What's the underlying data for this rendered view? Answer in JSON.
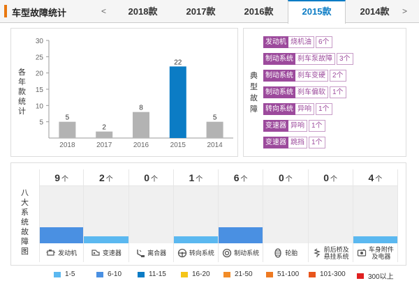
{
  "header": {
    "title": "车型故障统计",
    "prev_arrow": "<",
    "next_arrow": ">",
    "tabs": [
      {
        "label": "2018款",
        "active": false
      },
      {
        "label": "2017款",
        "active": false
      },
      {
        "label": "2016款",
        "active": false
      },
      {
        "label": "2015款",
        "active": true
      },
      {
        "label": "2014款",
        "active": false
      }
    ]
  },
  "chart_panel": {
    "ylabel_chars": [
      "各",
      "年",
      "款",
      "统",
      "计"
    ]
  },
  "chart_data": {
    "type": "bar",
    "categories": [
      "2018",
      "2017",
      "2016",
      "2015",
      "2014"
    ],
    "values": [
      5,
      2,
      8,
      22,
      5
    ],
    "highlight_index": 3,
    "highlight_color": "#0b7cc5",
    "bar_color": "#b3b3b3",
    "ylim": [
      0,
      30
    ],
    "yticks": [
      5,
      10,
      15,
      20,
      25,
      30
    ],
    "grid": false
  },
  "faults_panel": {
    "label_chars": [
      "典",
      "型",
      "故",
      "障"
    ],
    "items": [
      {
        "system": "发动机",
        "fault": "烧机油",
        "count": "6个"
      },
      {
        "system": "制动系统",
        "fault": "刹车泵故障",
        "count": "3个"
      },
      {
        "system": "制动系统",
        "fault": "刹车变硬",
        "count": "2个"
      },
      {
        "system": "制动系统",
        "fault": "刹车偏软",
        "count": "1个"
      },
      {
        "system": "转向系统",
        "fault": "异响",
        "count": "1个"
      },
      {
        "system": "变速器",
        "fault": "异响",
        "count": "1个"
      },
      {
        "system": "变速器",
        "fault": "跳挡",
        "count": "1个"
      }
    ],
    "color": "#9c4a9c"
  },
  "systems_panel": {
    "label_chars": [
      "八",
      "大",
      "系",
      "统",
      "故",
      "障",
      "图"
    ],
    "unit": "个",
    "systems": [
      {
        "name": "发动机",
        "count": "9",
        "level": 0.28,
        "color": "#4a90e2",
        "icon": "engine-icon"
      },
      {
        "name": "变速器",
        "count": "2",
        "level": 0.12,
        "color": "#5bb8f0",
        "icon": "gearbox-icon"
      },
      {
        "name": "离合器",
        "count": "0",
        "level": 0,
        "color": "#5bb8f0",
        "icon": "clutch-icon"
      },
      {
        "name": "转向系统",
        "count": "1",
        "level": 0.12,
        "color": "#5bb8f0",
        "icon": "steering-wheel-icon"
      },
      {
        "name": "制动系统",
        "count": "6",
        "level": 0.28,
        "color": "#4a90e2",
        "icon": "brake-icon"
      },
      {
        "name": "轮胎",
        "count": "0",
        "level": 0,
        "color": "#5bb8f0",
        "icon": "tire-icon"
      },
      {
        "name": "前后桥及\n悬挂系统",
        "count": "0",
        "level": 0,
        "color": "#5bb8f0",
        "icon": "suspension-icon"
      },
      {
        "name": "车身附件\n及电器",
        "count": "4",
        "level": 0.12,
        "color": "#5bb8f0",
        "icon": "car-body-icon"
      }
    ]
  },
  "legend": [
    {
      "label": "1-5",
      "color": "#5bb8f0"
    },
    {
      "label": "6-10",
      "color": "#4a90e2"
    },
    {
      "label": "11-15",
      "color": "#0b7cc5"
    },
    {
      "label": "16-20",
      "color": "#f5c518"
    },
    {
      "label": "21-50",
      "color": "#f28c28"
    },
    {
      "label": "51-100",
      "color": "#ee7a22"
    },
    {
      "label": "101-300",
      "color": "#e8551c"
    },
    {
      "label": "300以上",
      "color": "#e02020"
    }
  ]
}
